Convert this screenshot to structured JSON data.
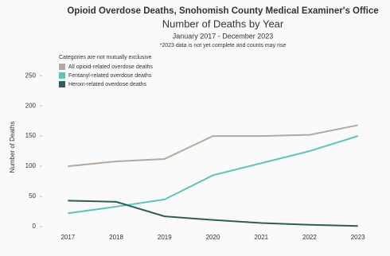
{
  "chart_data": {
    "type": "line",
    "title": "Opioid Overdose Deaths, Snohomish County Medical Examiner's Office",
    "subtitle": "Number of Deaths by Year",
    "date_range": "January 2017 - December 2023",
    "note": "*2023 data is not yet complete and counts may rise",
    "legend_title": "Categories are not mutually exclusive",
    "y_label": "Number of Deaths",
    "categories": [
      "2017",
      "2018",
      "2019",
      "2020",
      "2021",
      "2022",
      "2023"
    ],
    "series": [
      {
        "name": "All opioid-related overdose deaths",
        "color": "#b5a89c",
        "values": [
          100,
          108,
          112,
          150,
          150,
          152,
          168
        ]
      },
      {
        "name": "Fentanyl-related overdose deaths",
        "color": "#5fc4b8",
        "values": [
          22,
          33,
          45,
          85,
          105,
          125,
          150
        ]
      },
      {
        "name": "Heroin-related overdose deaths",
        "color": "#2f5e5a",
        "values": [
          43,
          41,
          17,
          11,
          6,
          3,
          1
        ]
      }
    ],
    "ylim": [
      0,
      270
    ],
    "yticks": [
      0,
      50,
      100,
      150,
      200,
      250
    ],
    "grid": false
  }
}
